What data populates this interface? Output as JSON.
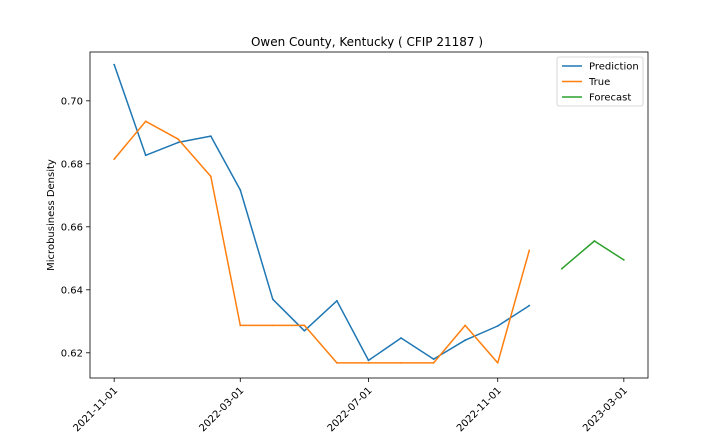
{
  "chart_data": {
    "type": "line",
    "title": "Owen County, Kentucky ( CFIP 21187 )",
    "xlabel": "",
    "ylabel": "Microbusiness Density",
    "x_ticks": [
      "2021-11-01",
      "2022-03-01",
      "2022-07-01",
      "2022-11-01",
      "2023-03-01"
    ],
    "y_ticks": [
      "0.62",
      "0.64",
      "0.66",
      "0.68",
      "0.70"
    ],
    "ylim": [
      0.612,
      0.7155
    ],
    "xlim": [
      "2021-10-09",
      "2023-03-24"
    ],
    "grid": false,
    "legend_position": "top-right",
    "series": [
      {
        "name": "Prediction",
        "color": "#1f77b4",
        "x": [
          "2021-11-01",
          "2021-12-01",
          "2022-01-01",
          "2022-02-01",
          "2022-03-01",
          "2022-04-01",
          "2022-05-01",
          "2022-06-01",
          "2022-07-01",
          "2022-08-01",
          "2022-09-01",
          "2022-10-01",
          "2022-11-01",
          "2022-12-01"
        ],
        "values": [
          0.7115,
          0.6827,
          0.6868,
          0.6888,
          0.6717,
          0.637,
          0.627,
          0.6365,
          0.6176,
          0.6247,
          0.618,
          0.624,
          0.6285,
          0.635
        ]
      },
      {
        "name": "True",
        "color": "#ff7f0e",
        "x": [
          "2021-11-01",
          "2021-12-01",
          "2022-01-01",
          "2022-02-01",
          "2022-03-01",
          "2022-04-01",
          "2022-05-01",
          "2022-06-01",
          "2022-07-01",
          "2022-08-01",
          "2022-09-01",
          "2022-10-01",
          "2022-11-01",
          "2022-12-01"
        ],
        "values": [
          0.6815,
          0.6935,
          0.6878,
          0.676,
          0.6287,
          0.6287,
          0.6287,
          0.6168,
          0.6168,
          0.6168,
          0.6168,
          0.6287,
          0.6168,
          0.6525
        ]
      },
      {
        "name": "Forecast",
        "color": "#2ca02c",
        "x": [
          "2023-01-01",
          "2023-02-01",
          "2023-03-01"
        ],
        "values": [
          0.6467,
          0.6555,
          0.6495
        ]
      }
    ]
  }
}
